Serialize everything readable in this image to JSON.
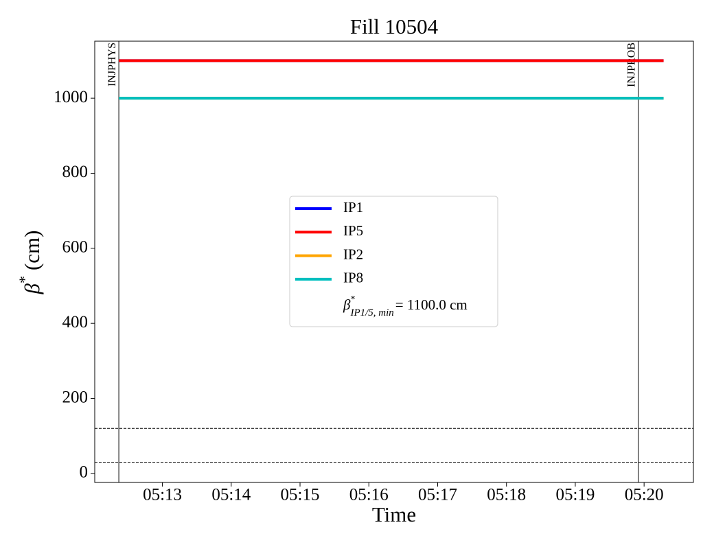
{
  "chart_data": {
    "type": "line",
    "title": "Fill 10504",
    "xlabel": "Time",
    "ylabel": {
      "symbol": "β",
      "sup": "*",
      "text": "(cm)"
    },
    "x": [
      "05:12:22",
      "05:20:17"
    ],
    "series": [
      {
        "name": "IP1",
        "color": "#0000ff",
        "values": [
          1100,
          1100
        ]
      },
      {
        "name": "IP5",
        "color": "#ff0000",
        "values": [
          1100,
          1100
        ]
      },
      {
        "name": "IP2",
        "color": "#ffa500",
        "values": [
          1000,
          1000
        ]
      },
      {
        "name": "IP8",
        "color": "#00bfbf",
        "values": [
          1000,
          1000
        ]
      }
    ],
    "legend_note": {
      "symbol": "β",
      "sup": "*",
      "sub": "IP1/5, min",
      "text": "= 1100.0 cm"
    },
    "xlim": [
      "05:12:01",
      "05:20:43"
    ],
    "xticks": [
      "05:13",
      "05:14",
      "05:15",
      "05:16",
      "05:17",
      "05:18",
      "05:19",
      "05:20"
    ],
    "ylim": [
      -24,
      1152
    ],
    "yticks": [
      0,
      200,
      400,
      600,
      800,
      1000
    ],
    "hlines": [
      120,
      30
    ],
    "vlines": [
      {
        "x": "05:12:22",
        "label": "INJPHYS"
      },
      {
        "x": "05:19:55",
        "label": "INJPROB"
      }
    ],
    "legend": "center"
  }
}
